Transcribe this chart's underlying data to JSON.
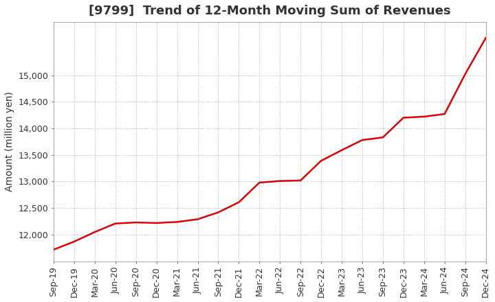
{
  "title": "[9799]  Trend of 12-Month Moving Sum of Revenues",
  "ylabel": "Amount (million yen)",
  "line_color": "#dd0000",
  "background_color": "#ffffff",
  "plot_bg_color": "#ffffff",
  "grid_color": "#aaaaaa",
  "x_labels": [
    "Sep-19",
    "Dec-19",
    "Mar-20",
    "Jun-20",
    "Sep-20",
    "Dec-20",
    "Mar-21",
    "Jun-21",
    "Sep-21",
    "Dec-21",
    "Mar-22",
    "Jun-22",
    "Sep-22",
    "Dec-22",
    "Mar-23",
    "Jun-23",
    "Sep-23",
    "Dec-23",
    "Mar-24",
    "Jun-24",
    "Sep-24",
    "Dec-24"
  ],
  "values": [
    11720,
    11870,
    12050,
    12210,
    12230,
    12220,
    12240,
    12290,
    12420,
    12610,
    12980,
    13010,
    13020,
    13390,
    13590,
    13780,
    13830,
    14200,
    14220,
    14270,
    15020,
    15700
  ],
  "ylim": [
    11500,
    16000
  ],
  "yticks": [
    12000,
    12500,
    13000,
    13500,
    14000,
    14500,
    15000
  ],
  "title_fontsize": 13,
  "label_fontsize": 10,
  "tick_fontsize": 9
}
